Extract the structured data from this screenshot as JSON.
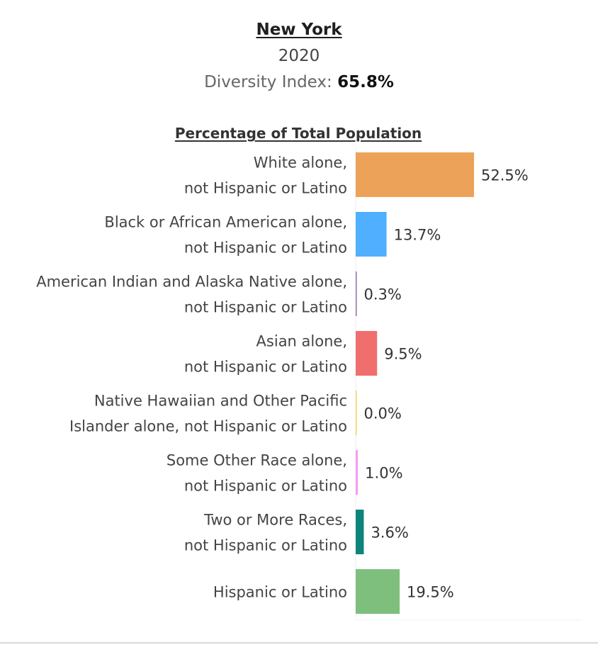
{
  "header": {
    "state": "New York",
    "year": "2020",
    "diversity_label": "Diversity Index: ",
    "diversity_value": "65.8%"
  },
  "chart_data": {
    "type": "bar",
    "orientation": "horizontal",
    "title": "Percentage of Total Population",
    "categories": [
      [
        "White alone,",
        "not Hispanic or Latino"
      ],
      [
        "Black or African American alone,",
        "not Hispanic or Latino"
      ],
      [
        "American Indian and Alaska Native alone,",
        "not Hispanic or Latino"
      ],
      [
        "Asian alone,",
        "not Hispanic or Latino"
      ],
      [
        "Native Hawaiian and Other Pacific",
        "Islander alone, not Hispanic or Latino"
      ],
      [
        "Some Other Race alone,",
        "not Hispanic or Latino"
      ],
      [
        "Two or More Races,",
        "not Hispanic or Latino"
      ],
      [
        "Hispanic or Latino"
      ]
    ],
    "values": [
      52.5,
      13.7,
      0.3,
      9.5,
      0.0,
      1.0,
      3.6,
      19.5
    ],
    "value_labels": [
      "52.5%",
      "13.7%",
      "0.3%",
      "9.5%",
      "0.0%",
      "1.0%",
      "3.6%",
      "19.5%"
    ],
    "colors": [
      "#eda259",
      "#50afff",
      "#9b6ea8",
      "#f06e6e",
      "#f4d45a",
      "#f2a0f0",
      "#0f847a",
      "#7ebf7e"
    ],
    "xlim": [
      0,
      100
    ],
    "grid": false,
    "legend": "none"
  }
}
